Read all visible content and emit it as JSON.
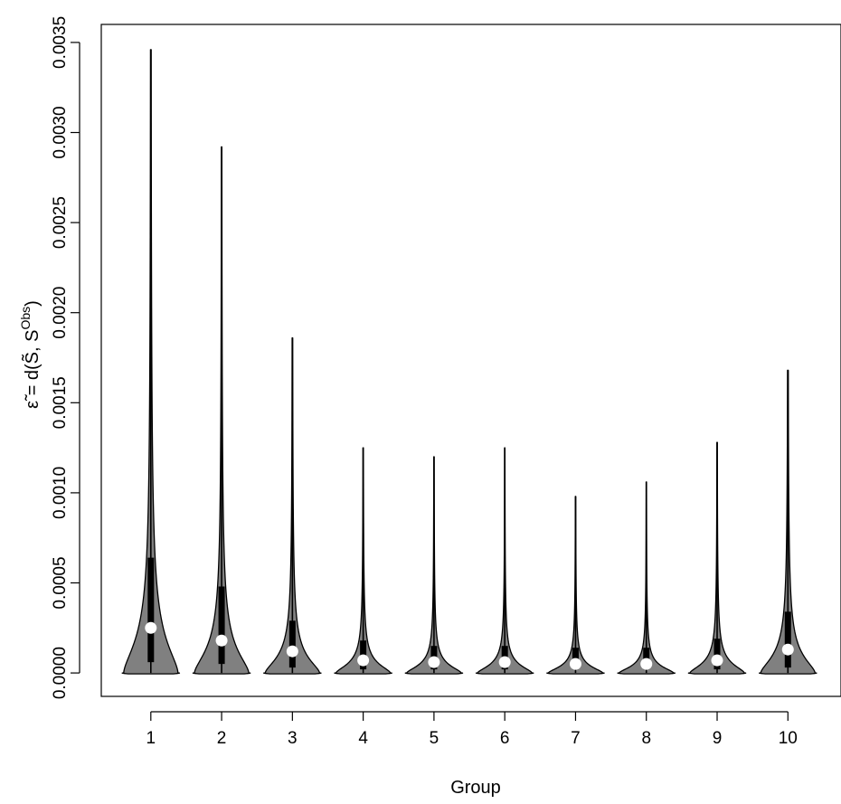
{
  "chart_data": {
    "type": "violin",
    "xlabel": "Group",
    "ylabel": {
      "parts": [
        "ε̃",
        " = d(",
        "S̃",
        ", ",
        "S",
        "Obs",
        ")"
      ]
    },
    "categories": [
      "1",
      "2",
      "3",
      "4",
      "5",
      "6",
      "7",
      "8",
      "9",
      "10"
    ],
    "ylim": [
      -0.00013,
      0.0036
    ],
    "xlim": [
      0.3,
      10.75
    ],
    "yticks": [
      0.0,
      0.0005,
      0.001,
      0.0015,
      0.002,
      0.0025,
      0.003,
      0.0035
    ],
    "ytick_labels": [
      "0.0000",
      "0.0005",
      "0.0010",
      "0.0015",
      "0.0020",
      "0.0025",
      "0.0030",
      "0.0035"
    ],
    "grid": false,
    "colors": {
      "violin_fill": "#808080",
      "outline": "#000000",
      "median": "#ffffff"
    },
    "groups": [
      {
        "group": "1",
        "min": 0.0,
        "q1": 6e-05,
        "median": 0.00025,
        "q3": 0.00064,
        "max": 0.00346
      },
      {
        "group": "2",
        "min": 0.0,
        "q1": 5e-05,
        "median": 0.00018,
        "q3": 0.00048,
        "max": 0.00292
      },
      {
        "group": "3",
        "min": 0.0,
        "q1": 3e-05,
        "median": 0.00012,
        "q3": 0.00029,
        "max": 0.00186
      },
      {
        "group": "4",
        "min": 0.0,
        "q1": 2e-05,
        "median": 7e-05,
        "q3": 0.00018,
        "max": 0.00125
      },
      {
        "group": "5",
        "min": 0.0,
        "q1": 2e-05,
        "median": 6e-05,
        "q3": 0.00015,
        "max": 0.0012
      },
      {
        "group": "6",
        "min": 0.0,
        "q1": 2e-05,
        "median": 6e-05,
        "q3": 0.00015,
        "max": 0.00125
      },
      {
        "group": "7",
        "min": 0.0,
        "q1": 2e-05,
        "median": 5e-05,
        "q3": 0.00014,
        "max": 0.00098
      },
      {
        "group": "8",
        "min": 0.0,
        "q1": 2e-05,
        "median": 5e-05,
        "q3": 0.00014,
        "max": 0.00106
      },
      {
        "group": "9",
        "min": 0.0,
        "q1": 2e-05,
        "median": 7e-05,
        "q3": 0.00019,
        "max": 0.00128
      },
      {
        "group": "10",
        "min": 0.0,
        "q1": 3e-05,
        "median": 0.00013,
        "q3": 0.00034,
        "max": 0.00168
      }
    ]
  }
}
